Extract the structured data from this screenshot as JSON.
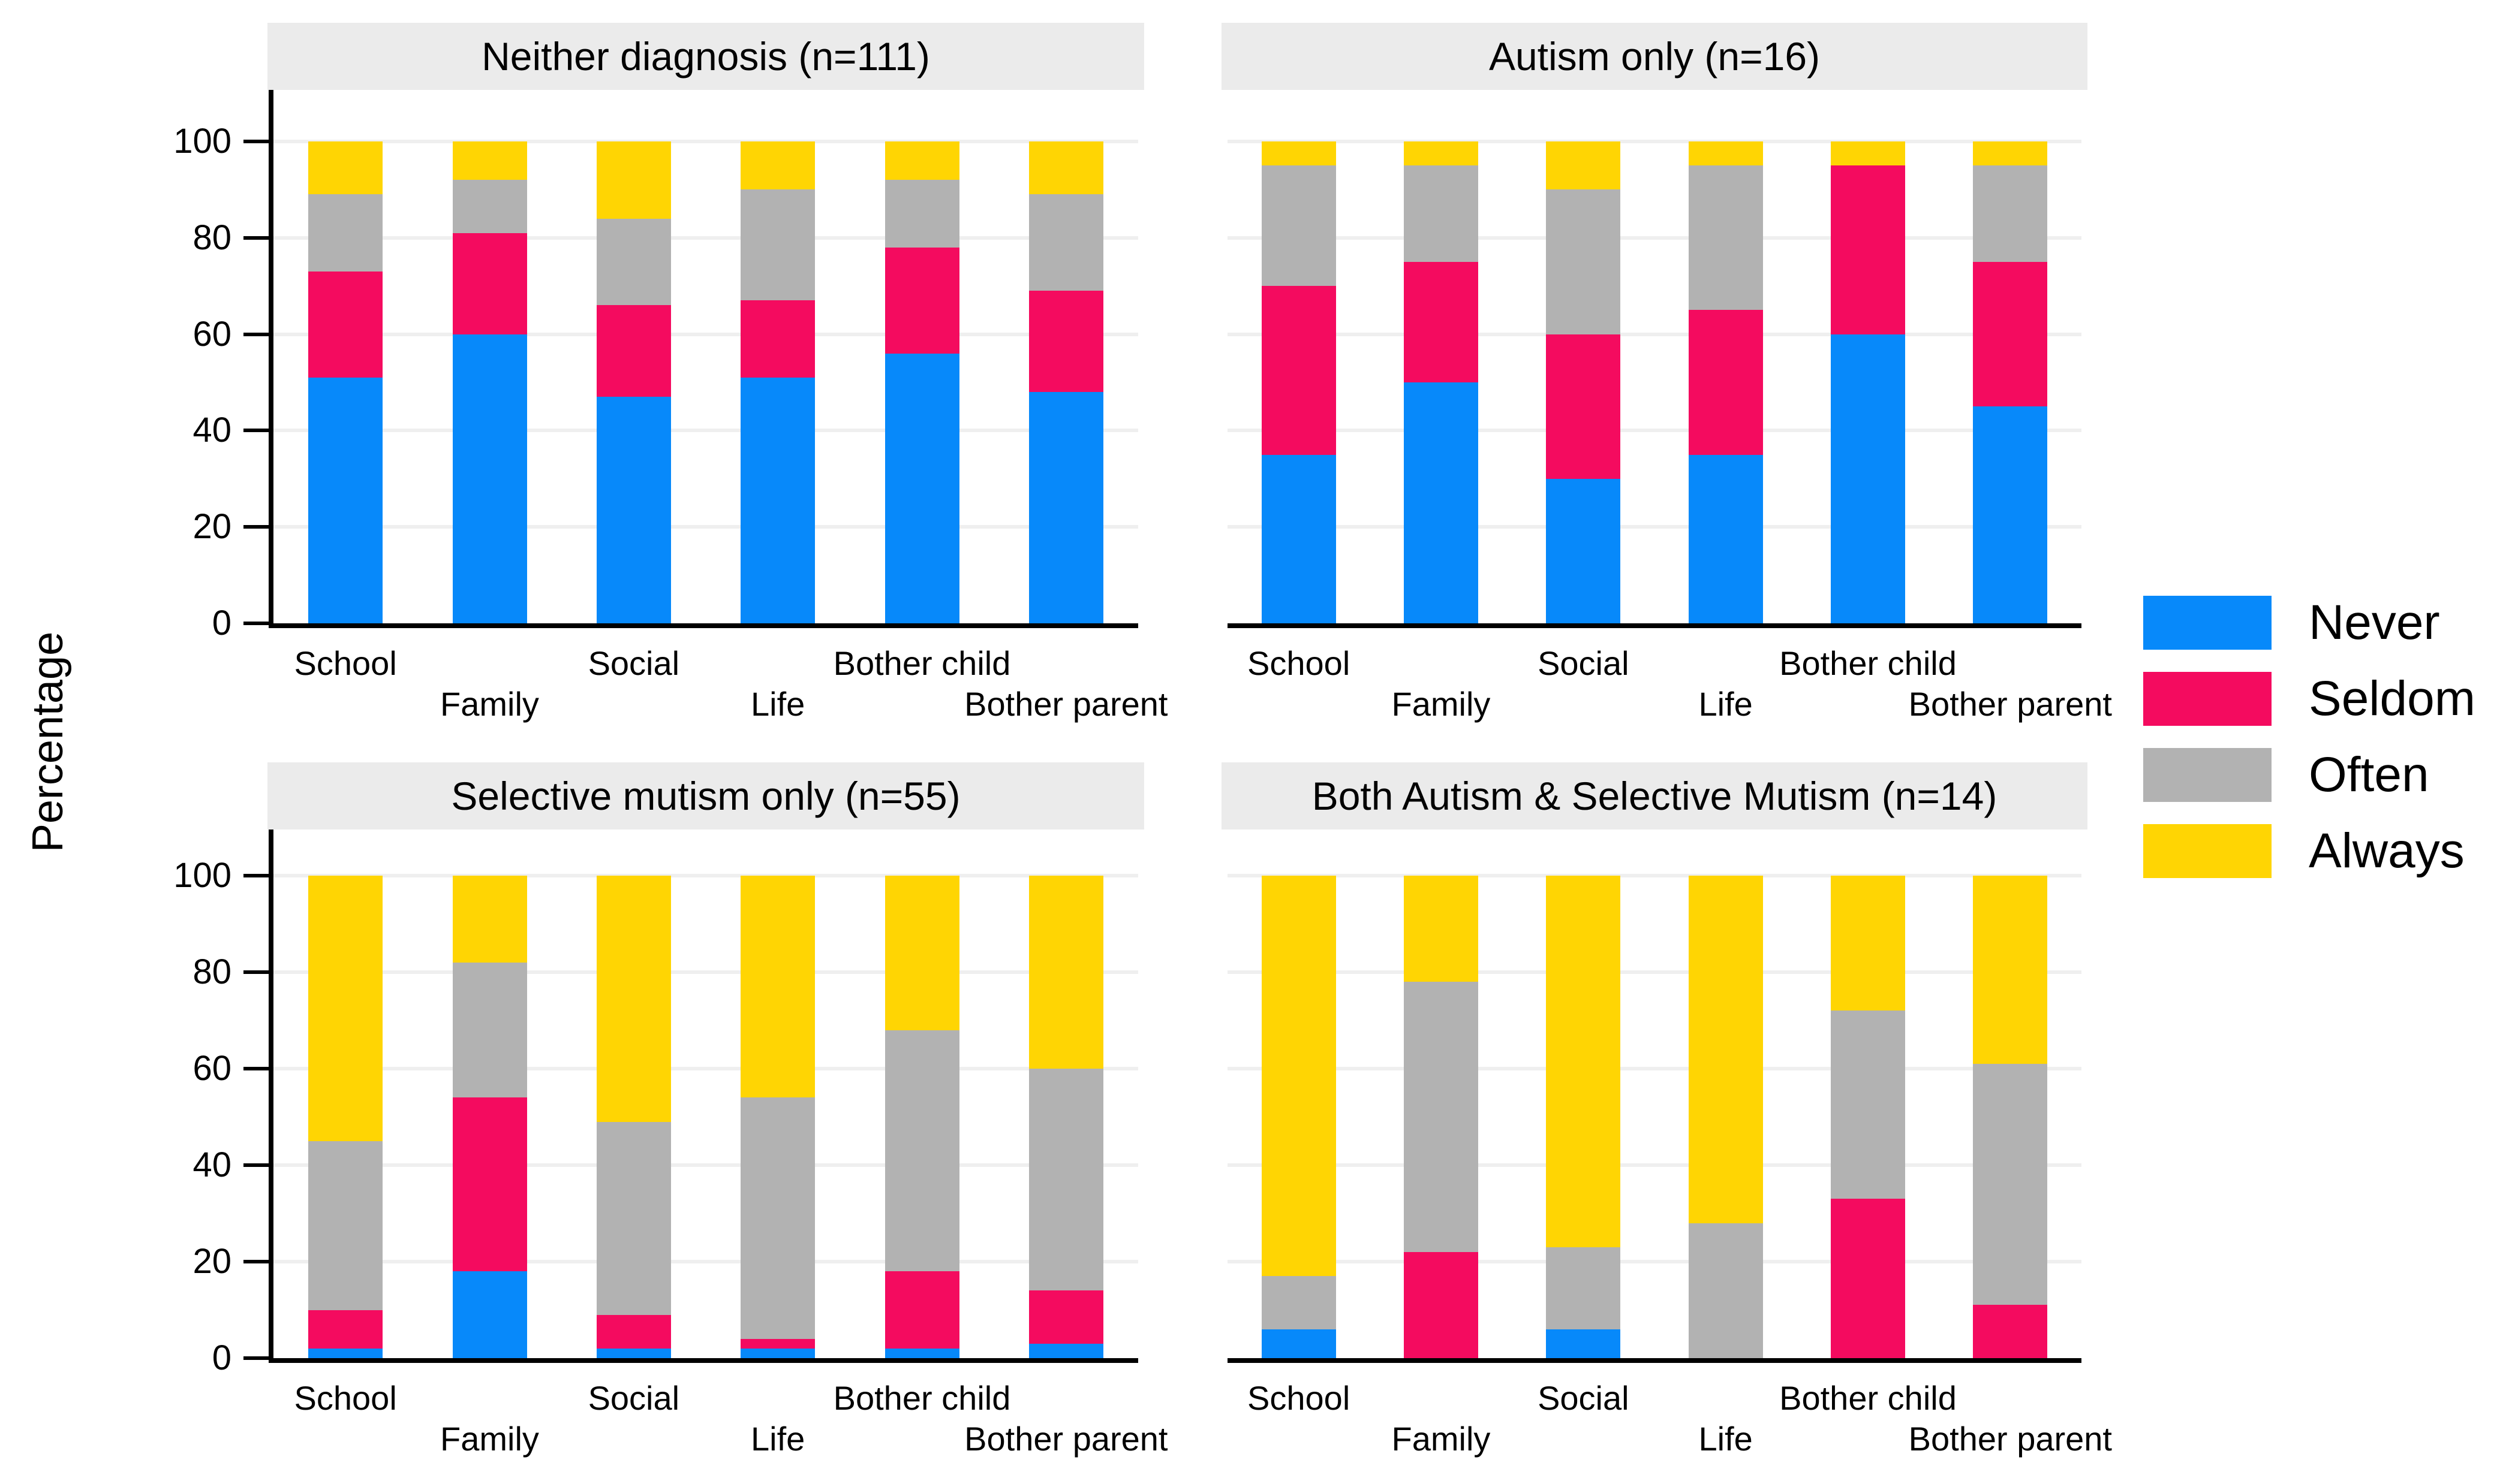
{
  "figure": {
    "y_axis_title": "Percentage"
  },
  "colors": {
    "never": "#0789fa",
    "seldom": "#f40b5f",
    "often": "#b2b2b2",
    "always": "#ffd503",
    "strip_bg": "#ebebeb",
    "gridline": "#efefef",
    "axis": "#000000"
  },
  "legend": [
    {
      "label": "Never",
      "color": "#0789fa"
    },
    {
      "label": "Seldom",
      "color": "#f40b5f"
    },
    {
      "label": "Often",
      "color": "#b2b2b2"
    },
    {
      "label": "Always",
      "color": "#ffd503"
    }
  ],
  "y_axis": {
    "ticks": [
      0,
      20,
      40,
      60,
      80,
      100
    ]
  },
  "chart_data": [
    {
      "type": "bar",
      "stacked": true,
      "title": "Neither diagnosis (n=111)",
      "categories": [
        "School",
        "Family",
        "Social",
        "Life",
        "Bother child",
        "Bother parent"
      ],
      "series": [
        {
          "name": "Never",
          "color": "#0789fa",
          "values": [
            51,
            60,
            47,
            51,
            56,
            48
          ]
        },
        {
          "name": "Seldom",
          "color": "#f40b5f",
          "values": [
            22,
            21,
            19,
            16,
            22,
            21
          ]
        },
        {
          "name": "Often",
          "color": "#b2b2b2",
          "values": [
            16,
            11,
            18,
            23,
            14,
            20
          ]
        },
        {
          "name": "Always",
          "color": "#ffd503",
          "values": [
            11,
            8,
            16,
            10,
            8,
            11
          ]
        }
      ],
      "ylabel": "Percentage",
      "ylim": [
        0,
        100
      ],
      "grid": true
    },
    {
      "type": "bar",
      "stacked": true,
      "title": "Autism only (n=16)",
      "categories": [
        "School",
        "Family",
        "Social",
        "Life",
        "Bother child",
        "Bother parent"
      ],
      "series": [
        {
          "name": "Never",
          "color": "#0789fa",
          "values": [
            35,
            50,
            30,
            35,
            60,
            45
          ]
        },
        {
          "name": "Seldom",
          "color": "#f40b5f",
          "values": [
            35,
            25,
            30,
            30,
            35,
            30
          ]
        },
        {
          "name": "Often",
          "color": "#b2b2b2",
          "values": [
            25,
            20,
            30,
            30,
            0,
            20
          ]
        },
        {
          "name": "Always",
          "color": "#ffd503",
          "values": [
            5,
            5,
            10,
            5,
            5,
            5
          ]
        }
      ],
      "ylabel": "Percentage",
      "ylim": [
        0,
        100
      ],
      "grid": true
    },
    {
      "type": "bar",
      "stacked": true,
      "title": "Selective mutism only (n=55)",
      "categories": [
        "School",
        "Family",
        "Social",
        "Life",
        "Bother child",
        "Bother parent"
      ],
      "series": [
        {
          "name": "Never",
          "color": "#0789fa",
          "values": [
            2,
            18,
            2,
            2,
            2,
            3
          ]
        },
        {
          "name": "Seldom",
          "color": "#f40b5f",
          "values": [
            8,
            36,
            7,
            2,
            16,
            11
          ]
        },
        {
          "name": "Often",
          "color": "#b2b2b2",
          "values": [
            35,
            28,
            40,
            50,
            50,
            46
          ]
        },
        {
          "name": "Always",
          "color": "#ffd503",
          "values": [
            55,
            18,
            51,
            46,
            32,
            40
          ]
        }
      ],
      "ylabel": "Percentage",
      "ylim": [
        0,
        100
      ],
      "grid": true
    },
    {
      "type": "bar",
      "stacked": true,
      "title": "Both Autism & Selective Mutism (n=14)",
      "categories": [
        "School",
        "Family",
        "Social",
        "Life",
        "Bother child",
        "Bother parent"
      ],
      "series": [
        {
          "name": "Never",
          "color": "#0789fa",
          "values": [
            6,
            0,
            6,
            0,
            0,
            0
          ]
        },
        {
          "name": "Seldom",
          "color": "#f40b5f",
          "values": [
            0,
            22,
            0,
            0,
            33,
            11
          ]
        },
        {
          "name": "Often",
          "color": "#b2b2b2",
          "values": [
            11,
            56,
            17,
            28,
            39,
            50
          ]
        },
        {
          "name": "Always",
          "color": "#ffd503",
          "values": [
            83,
            22,
            77,
            72,
            28,
            39
          ]
        }
      ],
      "ylabel": "Percentage",
      "ylim": [
        0,
        100
      ],
      "grid": true
    }
  ]
}
